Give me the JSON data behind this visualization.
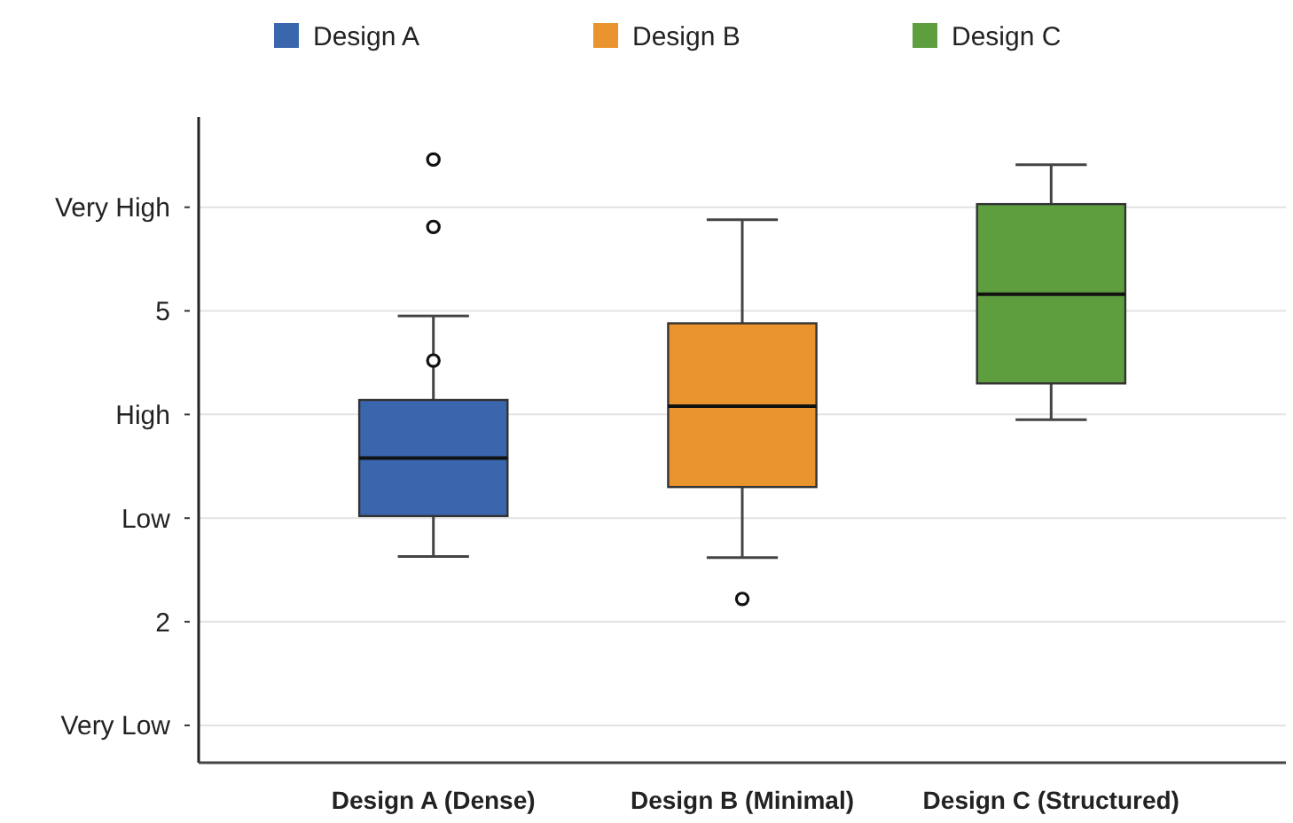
{
  "chart_data": {
    "type": "box",
    "categories": [
      "Design A (Dense)",
      "Design B (Minimal)",
      "Design C (Structured)"
    ],
    "series": [
      {
        "name": "Design A",
        "color": "#3a66ad",
        "boxes": [
          {
            "low": 2.63,
            "q1": 3.02,
            "median": 3.58,
            "q3": 4.14,
            "high": 4.95,
            "outliers": [
              6.46,
              5.81,
              4.52
            ]
          },
          null,
          null
        ]
      },
      {
        "name": "Design B",
        "color": "#ea942f",
        "boxes": [
          null,
          {
            "low": 2.62,
            "q1": 3.3,
            "median": 4.08,
            "q3": 4.88,
            "high": 5.88,
            "outliers": [
              2.22
            ]
          },
          null
        ]
      },
      {
        "name": "Design C",
        "color": "#5e9e3f",
        "boxes": [
          null,
          null,
          {
            "low": 3.95,
            "q1": 4.3,
            "median": 5.16,
            "q3": 6.03,
            "high": 6.41
          }
        ]
      }
    ],
    "ylim": [
      0.64,
      6.87
    ],
    "yticks": [
      {
        "value": 1,
        "label": "Very Low"
      },
      2,
      {
        "value": 3,
        "label": "Low"
      },
      {
        "value": 4,
        "label": "High"
      },
      5,
      {
        "value": 6,
        "label": "Very High"
      }
    ],
    "grid": "y",
    "legend": "top"
  }
}
